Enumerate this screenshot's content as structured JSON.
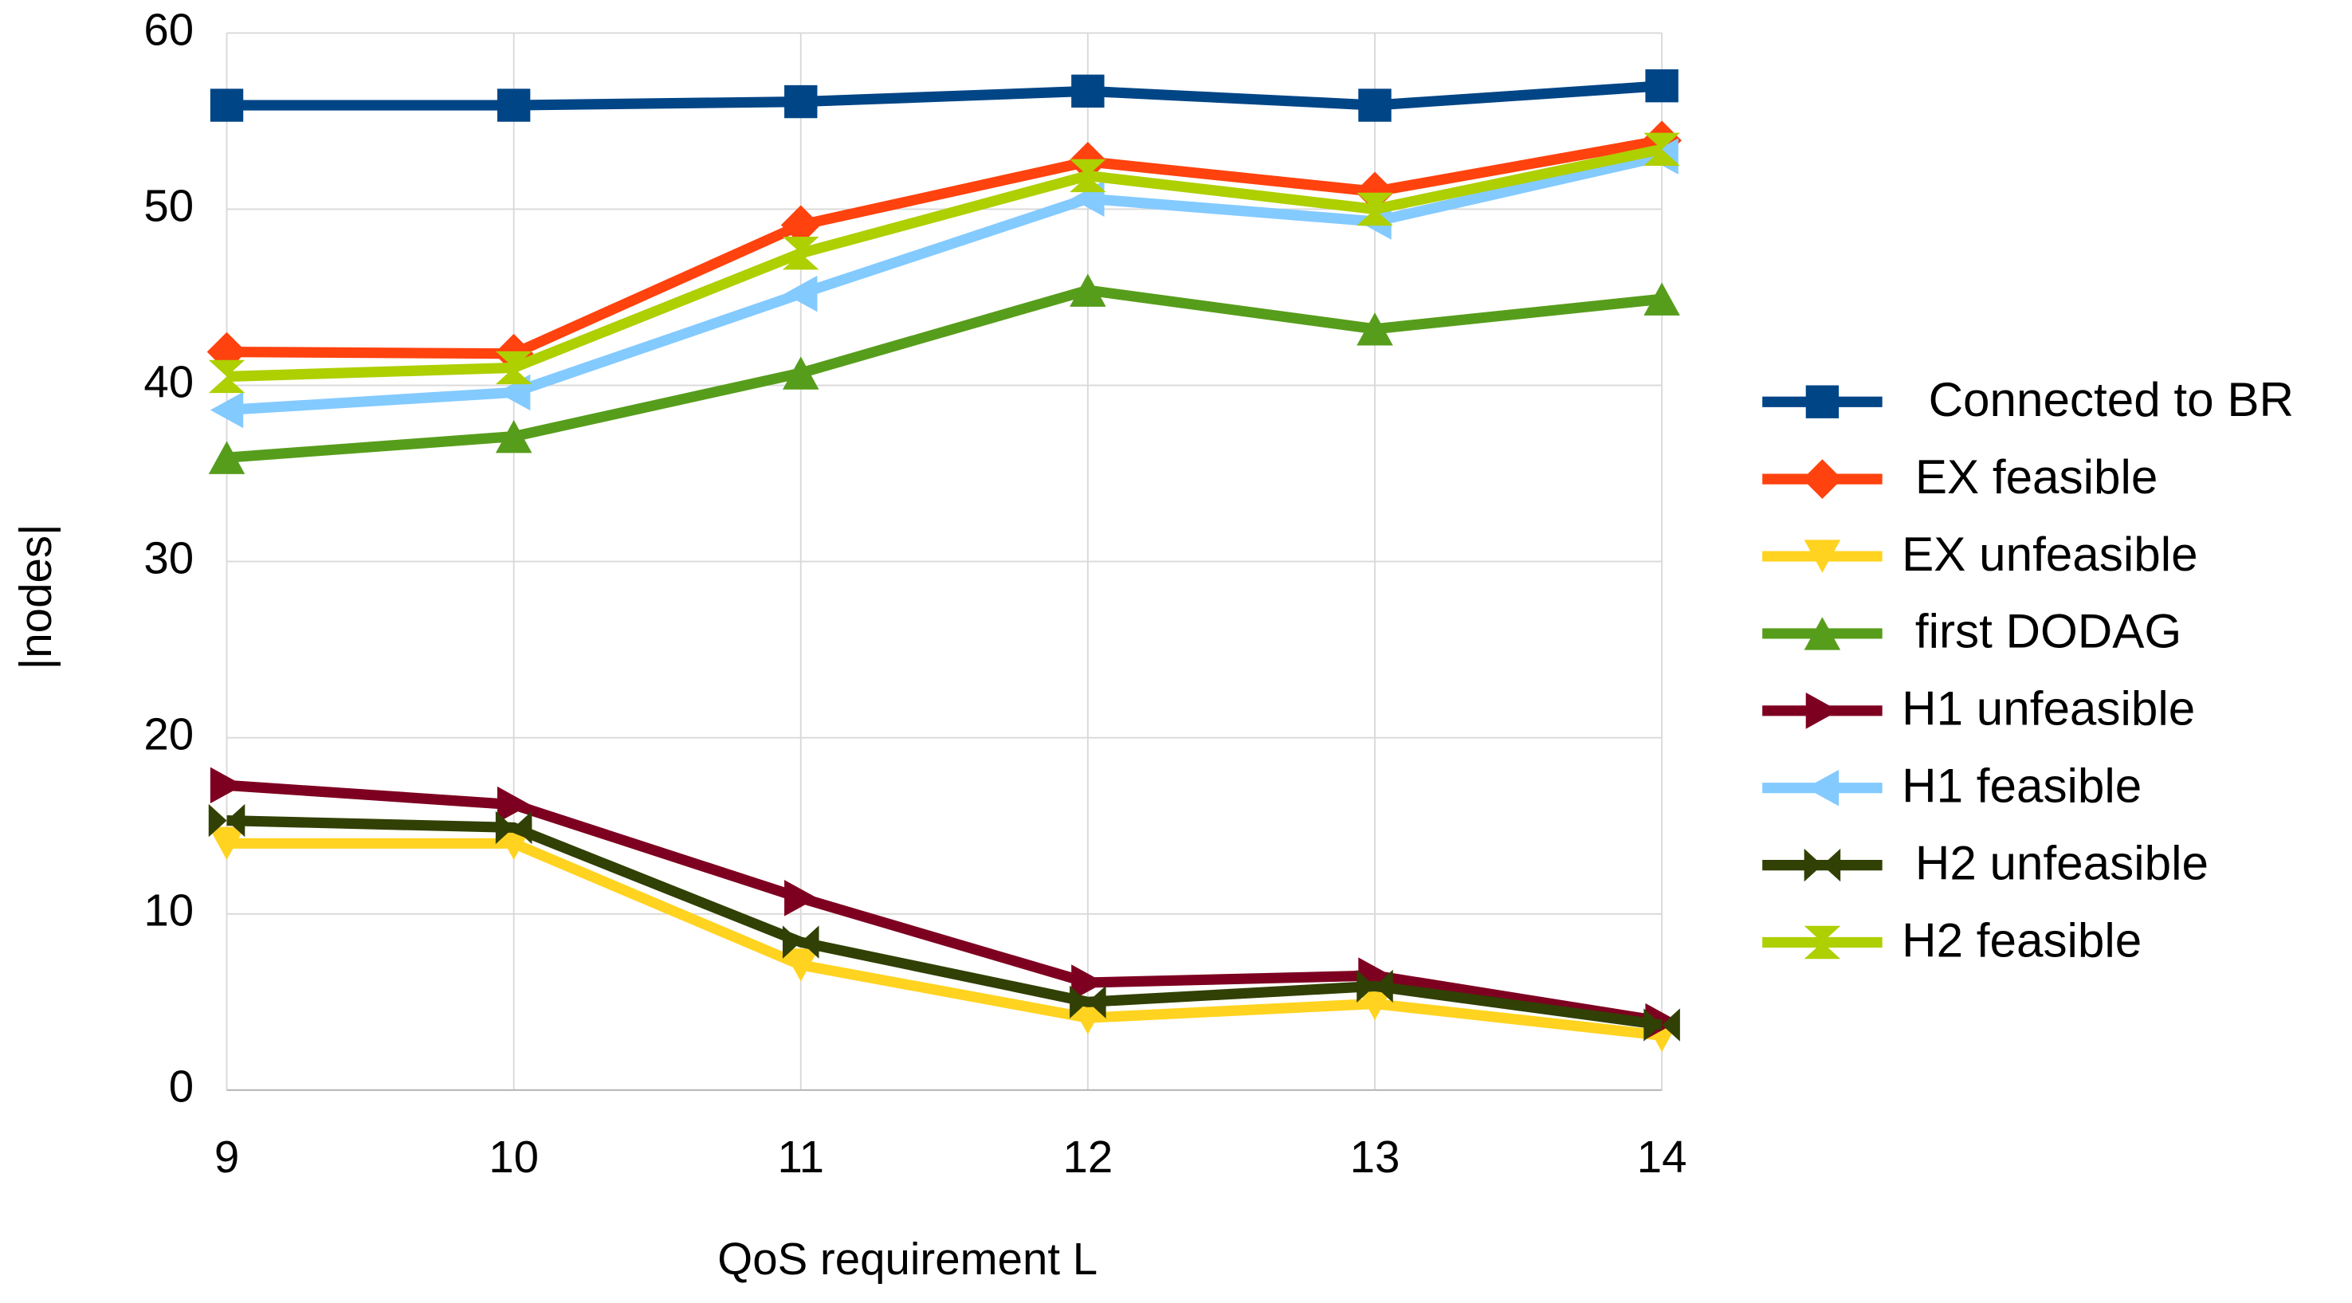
{
  "chart_data": {
    "type": "line",
    "x_label": "QoS requirement L",
    "y_label": "|nodes|",
    "x": [
      9,
      10,
      11,
      12,
      13,
      14
    ],
    "xlim": [
      9,
      14
    ],
    "xticks": [
      9,
      10,
      11,
      12,
      13,
      14
    ],
    "ylim": [
      0,
      60
    ],
    "yticks": [
      0,
      10,
      20,
      30,
      40,
      50,
      60
    ],
    "grid": true,
    "legend": "right",
    "series": [
      {
        "name": "  Connected to BR",
        "color": "#004586",
        "marker": "square",
        "values": [
          55.9,
          55.9,
          56.1,
          56.7,
          55.9,
          57.0
        ]
      },
      {
        "name": " EX feasible",
        "color": "#ff420e",
        "marker": "diamond",
        "values": [
          41.9,
          41.8,
          49.1,
          52.7,
          51.0,
          53.9
        ]
      },
      {
        "name": "EX unfeasible",
        "color": "#ffd320",
        "marker": "triangle-down",
        "values": [
          14.0,
          14.0,
          7.1,
          4.1,
          4.9,
          3.1
        ]
      },
      {
        "name": " first DODAG",
        "color": "#579d1c",
        "marker": "triangle-up",
        "values": [
          35.9,
          37.1,
          40.7,
          45.4,
          43.2,
          44.9
        ]
      },
      {
        "name": "H1 unfeasible",
        "color": "#7e0021",
        "marker": "triangle-right",
        "values": [
          17.3,
          16.2,
          10.9,
          6.1,
          6.5,
          3.9
        ]
      },
      {
        "name": "H1 feasible",
        "color": "#83caff",
        "marker": "triangle-left",
        "values": [
          38.6,
          39.6,
          45.2,
          50.6,
          49.3,
          53.0
        ]
      },
      {
        "name": " H2 unfeasible",
        "color": "#314004",
        "marker": "bowtie",
        "values": [
          15.3,
          14.9,
          8.4,
          5.0,
          5.9,
          3.7
        ]
      },
      {
        "name": "H2 feasible",
        "color": "#aecf00",
        "marker": "hourglass",
        "values": [
          40.5,
          41.0,
          47.5,
          51.9,
          50.0,
          53.4
        ]
      }
    ]
  }
}
